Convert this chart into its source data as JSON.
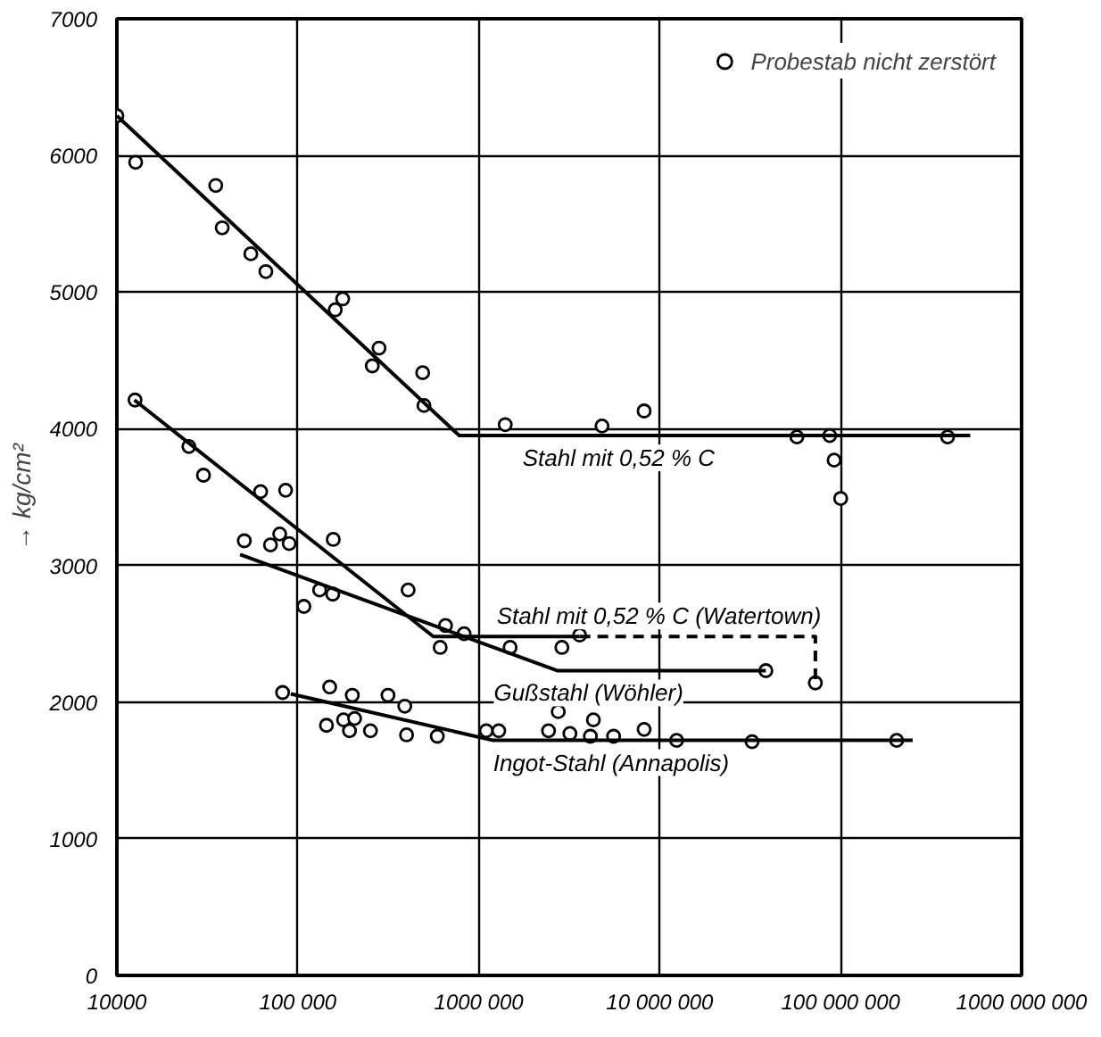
{
  "chart_data": {
    "type": "scatter",
    "ylabel": "→ kg/cm²",
    "log": "x",
    "grid": true,
    "legend": "top right",
    "marker": "circle",
    "xlim": [
      10000,
      1000000000
    ],
    "ylim": [
      0,
      7000
    ],
    "xticks": [
      {
        "value": 10000,
        "label": "10000"
      },
      {
        "value": 100000,
        "label": "100 000"
      },
      {
        "value": 1000000,
        "label": "1000 000"
      },
      {
        "value": 10000000,
        "label": "10 000 000"
      },
      {
        "value": 100000000,
        "label": "100 000 000"
      },
      {
        "value": 1000000000,
        "label": "1000 000 000"
      }
    ],
    "yticks": [
      0,
      1000,
      2000,
      3000,
      4000,
      5000,
      6000,
      7000
    ],
    "series": [
      {
        "color": "#000000",
        "x": [
          10000,
          12700,
          35200,
          38200,
          55000,
          66600,
          161000,
          177000,
          258000,
          281000,
          490000,
          498000,
          1400000,
          4800000,
          8200000,
          57300000,
          12600,
          25000,
          30100,
          62300,
          85600,
          79400,
          70600,
          89600,
          50600,
          157000,
          132000,
          156000,
          108000,
          407000,
          655000,
          612000,
          830000,
          1490000,
          2880000,
          3610000,
          38600000,
          82400,
          150000,
          200000,
          315000,
          390000,
          144000,
          179000,
          206000,
          193000,
          252000,
          399000,
          590000,
          1100000,
          1290000,
          2750000,
          2430000,
          3190000,
          4300000,
          4140000,
          5560000,
          8200000,
          12400000,
          32400000
        ],
        "values": [
          6290,
          5950,
          5780,
          5470,
          5280,
          5150,
          4870,
          4950,
          4460,
          4590,
          4410,
          4170,
          4030,
          4020,
          4130,
          3940,
          4210,
          3870,
          3660,
          3540,
          3550,
          3230,
          3150,
          3160,
          3180,
          3190,
          2820,
          2790,
          2700,
          2820,
          2560,
          2400,
          2500,
          2400,
          2400,
          2490,
          2230,
          2070,
          2110,
          2050,
          2050,
          1970,
          1830,
          1870,
          1880,
          1790,
          1790,
          1760,
          1750,
          1790,
          1790,
          1930,
          1790,
          1770,
          1870,
          1750,
          1750,
          1800,
          1720,
          1710
        ]
      },
      {
        "name": "Probestab nicht zerstört",
        "color": "#000000",
        "x": [
          87000000,
          390000000,
          92000000,
          100000000,
          72500000,
          204000000
        ],
        "values": [
          3950,
          3940,
          3770,
          3490,
          2140,
          1720
        ]
      },
      {
        "type": "line",
        "name": "Stahl mit 0,52 % C",
        "color": "#000000",
        "marker": "none",
        "line_style": "solid",
        "x": [
          10000,
          780000,
          520000000
        ],
        "values": [
          6290,
          3950,
          3950
        ]
      },
      {
        "type": "line",
        "name": "Stahl mit 0,52 % C (Watertown)",
        "color": "#000000",
        "marker": "none",
        "line_style": "solid",
        "x": [
          12500,
          561000,
          3610000
        ],
        "values": [
          4210,
          2480,
          2480
        ]
      },
      {
        "type": "line",
        "color": "#000000",
        "marker": "none",
        "line_style": "dashed",
        "x": [
          3610000,
          72500000,
          72500000
        ],
        "values": [
          2480,
          2480,
          2140
        ]
      },
      {
        "type": "line",
        "name": "Gußstahl (Wöhler)",
        "color": "#000000",
        "marker": "none",
        "line_style": "solid",
        "x": [
          48000,
          2710000,
          38600000
        ],
        "values": [
          3080,
          2230,
          2230
        ]
      },
      {
        "type": "line",
        "name": "Ingot-Stahl (Annapolis)",
        "color": "#000000",
        "marker": "none",
        "line_style": "solid",
        "x": [
          91400,
          1200000,
          250000000
        ],
        "values": [
          2060,
          1720,
          1720
        ]
      }
    ]
  }
}
